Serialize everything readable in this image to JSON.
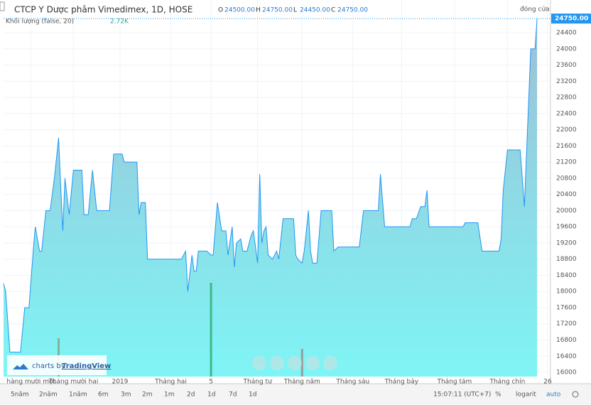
{
  "header": {
    "title": "CTCP Y Dược phâm Vimedimex, 1D, HOSE",
    "ohlc": [
      {
        "key": "O",
        "value": "24500.00"
      },
      {
        "key": "H",
        "value": "24750.00"
      },
      {
        "key": "L",
        "value": "24450.00"
      },
      {
        "key": "C",
        "value": "24750.00"
      }
    ],
    "status": "đóng cửa",
    "volume_label": "Khối lượng (false, 20)",
    "volume_value": "2.72K"
  },
  "watermark": {
    "prefix": "charts by",
    "brand": "TradingView"
  },
  "toolbar": {
    "ranges": [
      "5năm",
      "2năm",
      "1năm",
      "6m",
      "3m",
      "2m",
      "1m",
      "2d",
      "1d",
      "7d",
      "1d"
    ],
    "time": "15:07:11 (UTC+7)",
    "options": [
      "%",
      "logarit",
      "auto"
    ]
  },
  "chart_data": {
    "type": "area",
    "color": "#2196f3",
    "grid": true,
    "x": [
      0,
      1,
      3,
      4,
      8,
      10,
      12,
      14,
      15,
      17,
      18,
      20,
      22,
      24,
      26,
      27,
      28,
      29,
      31,
      33,
      37,
      38,
      40,
      42,
      44,
      50,
      52,
      56,
      57,
      63,
      64,
      65,
      67,
      68,
      84,
      86,
      87,
      89,
      90,
      91,
      92,
      96,
      98,
      99,
      101,
      103,
      105,
      106,
      108,
      109,
      110,
      112,
      113,
      115,
      117,
      118,
      120,
      121,
      122,
      123,
      124,
      125,
      127,
      129,
      130,
      132,
      137,
      138,
      139,
      141,
      142,
      144,
      145,
      146,
      148,
      150,
      155,
      156,
      158,
      168,
      170,
      177,
      178,
      180,
      192,
      193,
      195,
      197,
      199,
      200,
      201,
      217,
      218,
      224,
      226,
      234,
      235,
      236,
      238,
      244,
      246,
      249,
      251,
      252
    ],
    "values": [
      18200,
      18000,
      16500,
      16500,
      16500,
      17600,
      17600,
      19000,
      19600,
      19000,
      19000,
      20000,
      20000,
      20800,
      21800,
      20600,
      19500,
      20800,
      19900,
      21000,
      21000,
      19900,
      19900,
      21000,
      20000,
      20000,
      21400,
      21400,
      21200,
      21200,
      19900,
      20200,
      20200,
      18800,
      18800,
      19000,
      18000,
      18900,
      18500,
      18500,
      19000,
      19000,
      18900,
      18900,
      20200,
      19500,
      19500,
      18900,
      19600,
      18600,
      19200,
      19300,
      19000,
      19000,
      19400,
      19500,
      18700,
      20900,
      19200,
      19500,
      19600,
      18900,
      18800,
      19000,
      18800,
      19800,
      19800,
      18900,
      18800,
      18700,
      19000,
      20000,
      19000,
      18700,
      18700,
      20000,
      20000,
      19000,
      19100,
      19100,
      20000,
      20000,
      20900,
      19600,
      19600,
      19800,
      19800,
      20100,
      20100,
      20500,
      19600,
      19600,
      19700,
      19700,
      19000,
      19000,
      19300,
      20500,
      21500,
      21500,
      20100,
      24000,
      24000,
      24750
    ],
    "xlim": [
      0,
      258
    ],
    "ylim": [
      15895,
      25209
    ],
    "yticks": [
      16000,
      16400,
      16800,
      17200,
      17600,
      18000,
      18400,
      18800,
      19200,
      19600,
      20000,
      20400,
      20800,
      21200,
      21600,
      22000,
      22400,
      22800,
      23200,
      23600,
      24000,
      24400
    ],
    "xticks": [
      {
        "value": 13,
        "label": "hàng mười một"
      },
      {
        "value": 33,
        "label": "Tháng mười hai"
      },
      {
        "value": 55,
        "label": "2019"
      },
      {
        "value": 79,
        "label": "Tháng hai"
      },
      {
        "value": 98,
        "label": "5"
      },
      {
        "value": 120,
        "label": "Tháng tư"
      },
      {
        "value": 141,
        "label": "Tháng năm"
      },
      {
        "value": 165,
        "label": "Tháng sáu"
      },
      {
        "value": 188,
        "label": "Tháng bảy"
      },
      {
        "value": 213,
        "label": "Tháng tám"
      },
      {
        "value": 238,
        "label": "Tháng chín"
      },
      {
        "value": 257,
        "label": "26"
      }
    ],
    "volume": {
      "x": [
        26,
        98,
        141
      ],
      "values": [
        54,
        132,
        39
      ],
      "colors": [
        "#7fb59a",
        "#3cb98a",
        "#9a9a9a"
      ],
      "vlim": [
        0,
        170
      ]
    }
  }
}
